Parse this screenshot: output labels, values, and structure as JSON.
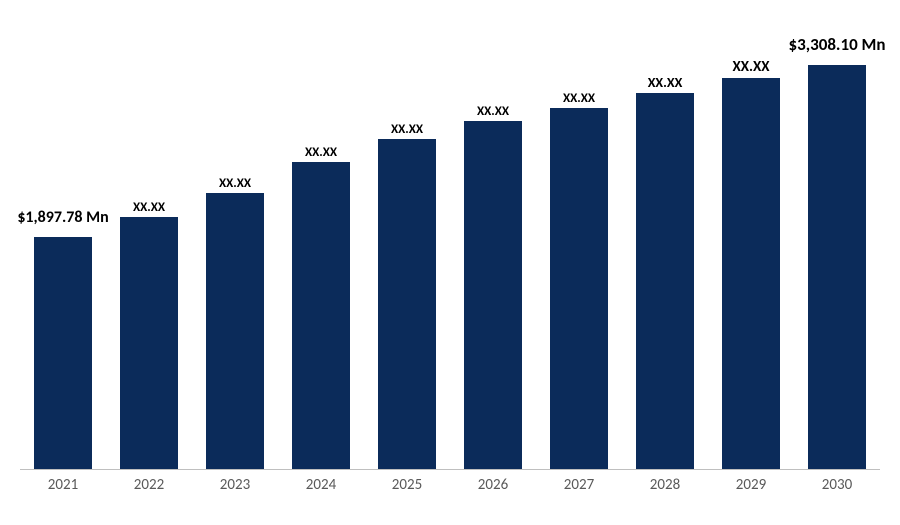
{
  "chart": {
    "type": "bar",
    "background_color": "#ffffff",
    "axis_line_color": "#bfbfbf",
    "bar_color": "#0b2b5a",
    "bar_width_pct": 68,
    "value_label_font_weight": 700,
    "x_tick_color": "#595959",
    "x_tick_fontsize": 15,
    "ymax": 3600,
    "plot_area_height": 440,
    "categories": [
      "2021",
      "2022",
      "2023",
      "2024",
      "2025",
      "2026",
      "2027",
      "2028",
      "2029",
      "2030"
    ],
    "values": [
      1897.78,
      2060,
      2260,
      2510,
      2700,
      2850,
      2950,
      3080,
      3200,
      3308.1
    ],
    "value_labels": [
      "$1,897.78 Mn",
      "XX.XX",
      "XX.XX",
      "XX.XX",
      "XX.XX",
      "XX.XX",
      "XX.XX",
      "XX.XX",
      "XX.XX",
      "$3,308.10 Mn"
    ],
    "value_label_fontsizes": [
      16,
      13,
      13,
      13,
      13,
      13,
      13,
      14,
      15,
      17
    ],
    "value_label_offsets": [
      28,
      20,
      20,
      20,
      20,
      20,
      20,
      20,
      20,
      28
    ]
  }
}
